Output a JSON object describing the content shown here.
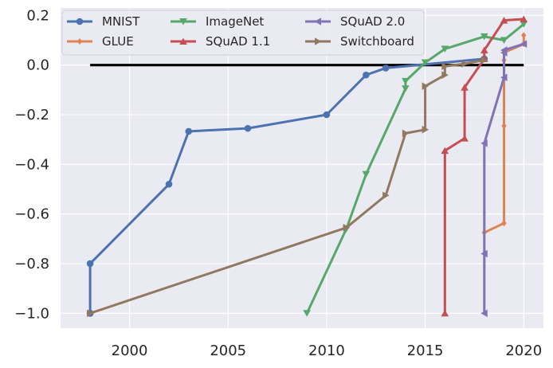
{
  "chart_data": {
    "type": "line",
    "title": "",
    "xlabel": "",
    "ylabel": "",
    "xlim": [
      1996.5,
      2021
    ],
    "ylim": [
      -1.06,
      0.23
    ],
    "x_ticks": [
      2000,
      2005,
      2010,
      2015,
      2020
    ],
    "y_ticks": [
      -1.0,
      -0.8,
      -0.6,
      -0.4,
      -0.2,
      0.0,
      0.2
    ],
    "x_tick_labels": [
      "2000",
      "2005",
      "2010",
      "2015",
      "2020"
    ],
    "y_tick_labels": [
      "−1.0",
      "−0.8",
      "−0.6",
      "−0.4",
      "−0.2",
      "0.0",
      "0.2"
    ],
    "grid": true,
    "legend_position": "top-left",
    "reference_line": {
      "y": 0.0,
      "x": [
        1998,
        2020
      ],
      "color": "#000000"
    },
    "series": [
      {
        "name": "MNIST",
        "color": "#4c72b0",
        "marker": "circle",
        "x": [
          1998,
          1998,
          1998,
          2002,
          2003,
          2006,
          2010,
          2012,
          2013,
          2018
        ],
        "y": [
          -1.0,
          -1.0,
          -0.8,
          -0.48,
          -0.267,
          -0.255,
          -0.2,
          -0.04,
          -0.012,
          0.025
        ]
      },
      {
        "name": "GLUE",
        "color": "#dd8452",
        "marker": "diamond",
        "x": [
          2018,
          2019,
          2019,
          2019,
          2019,
          2020,
          2020
        ],
        "y": [
          -0.675,
          -0.637,
          -0.245,
          0.02,
          0.05,
          0.085,
          0.12
        ]
      },
      {
        "name": "ImageNet",
        "color": "#55a868",
        "marker": "triangle-down",
        "x": [
          2009,
          2011,
          2012,
          2014,
          2014,
          2015,
          2016,
          2018,
          2019,
          2020
        ],
        "y": [
          -1.0,
          -0.66,
          -0.44,
          -0.095,
          -0.065,
          0.01,
          0.065,
          0.115,
          0.1,
          0.165
        ]
      },
      {
        "name": "SQuAD 1.1",
        "color": "#c44e52",
        "marker": "triangle-up",
        "x": [
          2016,
          2016,
          2017,
          2017,
          2018,
          2018,
          2019,
          2020
        ],
        "y": [
          -1.0,
          -0.345,
          -0.295,
          -0.09,
          0.025,
          0.06,
          0.18,
          0.185
        ]
      },
      {
        "name": "SQuAD 2.0",
        "color": "#8172b3",
        "marker": "triangle-left",
        "x": [
          2018,
          2018,
          2018,
          2019,
          2019,
          2019,
          2020
        ],
        "y": [
          -1.0,
          -0.76,
          -0.315,
          -0.05,
          0.05,
          0.06,
          0.085
        ]
      },
      {
        "name": "Switchboard",
        "color": "#937860",
        "marker": "triangle-right",
        "x": [
          1998,
          2011,
          2013,
          2014,
          2015,
          2015,
          2016,
          2016,
          2017,
          2018
        ],
        "y": [
          -1.0,
          -0.655,
          -0.525,
          -0.275,
          -0.26,
          -0.085,
          -0.04,
          -0.005,
          0.005,
          0.02
        ]
      }
    ]
  }
}
